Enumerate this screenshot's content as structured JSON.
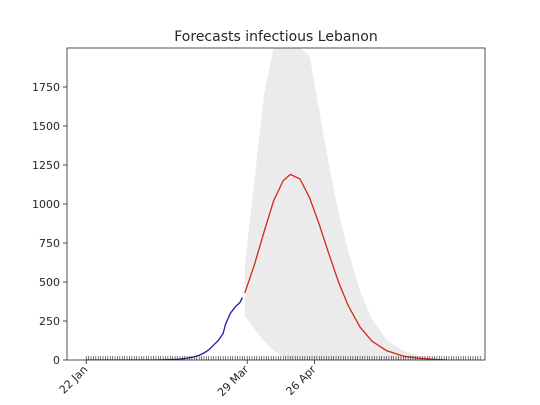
{
  "chart_data": {
    "type": "line",
    "title": "Forecasts infectious Lebanon",
    "xlabel": "",
    "ylabel": "",
    "x_axis": {
      "type": "date",
      "start": "2020-01-14",
      "end": "2020-07-06",
      "tick_labels": [
        "22 Jan",
        "29 Mar",
        "26 Apr"
      ]
    },
    "ylim": [
      0,
      2000
    ],
    "y_ticks": [
      0,
      250,
      500,
      750,
      1000,
      1250,
      1500,
      1750
    ],
    "grid": false,
    "legend": "none",
    "series": [
      {
        "color": "#1a1aaa",
        "points": [
          [
            "2020-01-22",
            0
          ],
          [
            "2020-02-20",
            0
          ],
          [
            "2020-02-25",
            2
          ],
          [
            "2020-03-01",
            5
          ],
          [
            "2020-03-04",
            12
          ],
          [
            "2020-03-07",
            20
          ],
          [
            "2020-03-09",
            30
          ],
          [
            "2020-03-11",
            45
          ],
          [
            "2020-03-13",
            65
          ],
          [
            "2020-03-15",
            95
          ],
          [
            "2020-03-17",
            125
          ],
          [
            "2020-03-19",
            170
          ],
          [
            "2020-03-20",
            230
          ],
          [
            "2020-03-22",
            300
          ],
          [
            "2020-03-24",
            340
          ],
          [
            "2020-03-26",
            370
          ],
          [
            "2020-03-27",
            400
          ]
        ]
      },
      {
        "color": "#d62718",
        "points": [
          [
            "2020-03-28",
            430
          ],
          [
            "2020-04-01",
            610
          ],
          [
            "2020-04-05",
            820
          ],
          [
            "2020-04-09",
            1020
          ],
          [
            "2020-04-13",
            1150
          ],
          [
            "2020-04-16",
            1190
          ],
          [
            "2020-04-20",
            1160
          ],
          [
            "2020-04-24",
            1040
          ],
          [
            "2020-04-28",
            870
          ],
          [
            "2020-05-02",
            680
          ],
          [
            "2020-05-06",
            500
          ],
          [
            "2020-05-10",
            350
          ],
          [
            "2020-05-15",
            210
          ],
          [
            "2020-05-20",
            120
          ],
          [
            "2020-05-26",
            60
          ],
          [
            "2020-06-02",
            25
          ],
          [
            "2020-06-09",
            10
          ],
          [
            "2020-06-16",
            3
          ],
          [
            "2020-06-20",
            0
          ]
        ]
      }
    ],
    "confidence_band": {
      "color": "#ebebeb",
      "points": [
        [
          "2020-03-28",
          280,
          600
        ],
        [
          "2020-04-01",
          200,
          1150
        ],
        [
          "2020-04-05",
          120,
          1700
        ],
        [
          "2020-04-09",
          60,
          2000
        ],
        [
          "2020-04-13",
          20,
          2000
        ],
        [
          "2020-04-16",
          0,
          2000
        ],
        [
          "2020-04-20",
          0,
          2000
        ],
        [
          "2020-04-24",
          0,
          1950
        ],
        [
          "2020-04-28",
          0,
          1600
        ],
        [
          "2020-05-02",
          0,
          1250
        ],
        [
          "2020-05-06",
          0,
          950
        ],
        [
          "2020-05-10",
          0,
          700
        ],
        [
          "2020-05-15",
          0,
          440
        ],
        [
          "2020-05-20",
          0,
          260
        ],
        [
          "2020-05-26",
          0,
          130
        ],
        [
          "2020-06-02",
          0,
          60
        ],
        [
          "2020-06-09",
          0,
          25
        ],
        [
          "2020-06-16",
          0,
          8
        ],
        [
          "2020-06-20",
          0,
          0
        ]
      ]
    }
  }
}
